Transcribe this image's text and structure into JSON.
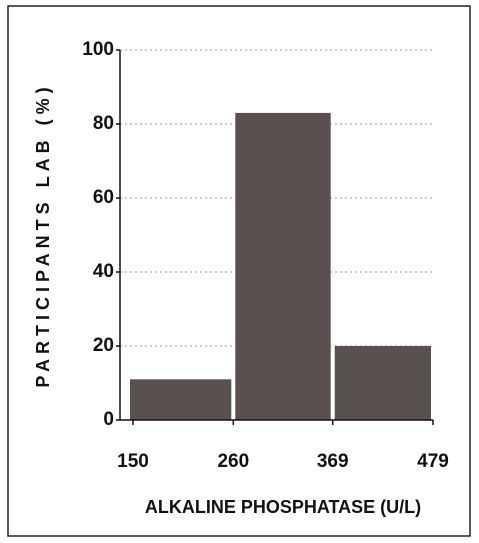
{
  "chart_data": {
    "type": "histogram",
    "bins": [
      150,
      260,
      369,
      479
    ],
    "counts": [
      11,
      83,
      20
    ],
    "color": "#5a5050",
    "xlabel": "ALKALINE PHOSPHATASE  (U/L)",
    "ylabel": "PARTICIPANTS LAB (%)",
    "xlim": [
      150,
      479
    ],
    "xticks": [
      150,
      260,
      369,
      479
    ],
    "ylim": [
      0,
      100
    ],
    "yticks": [
      0,
      20,
      40,
      60,
      80,
      100
    ],
    "grid": true
  }
}
